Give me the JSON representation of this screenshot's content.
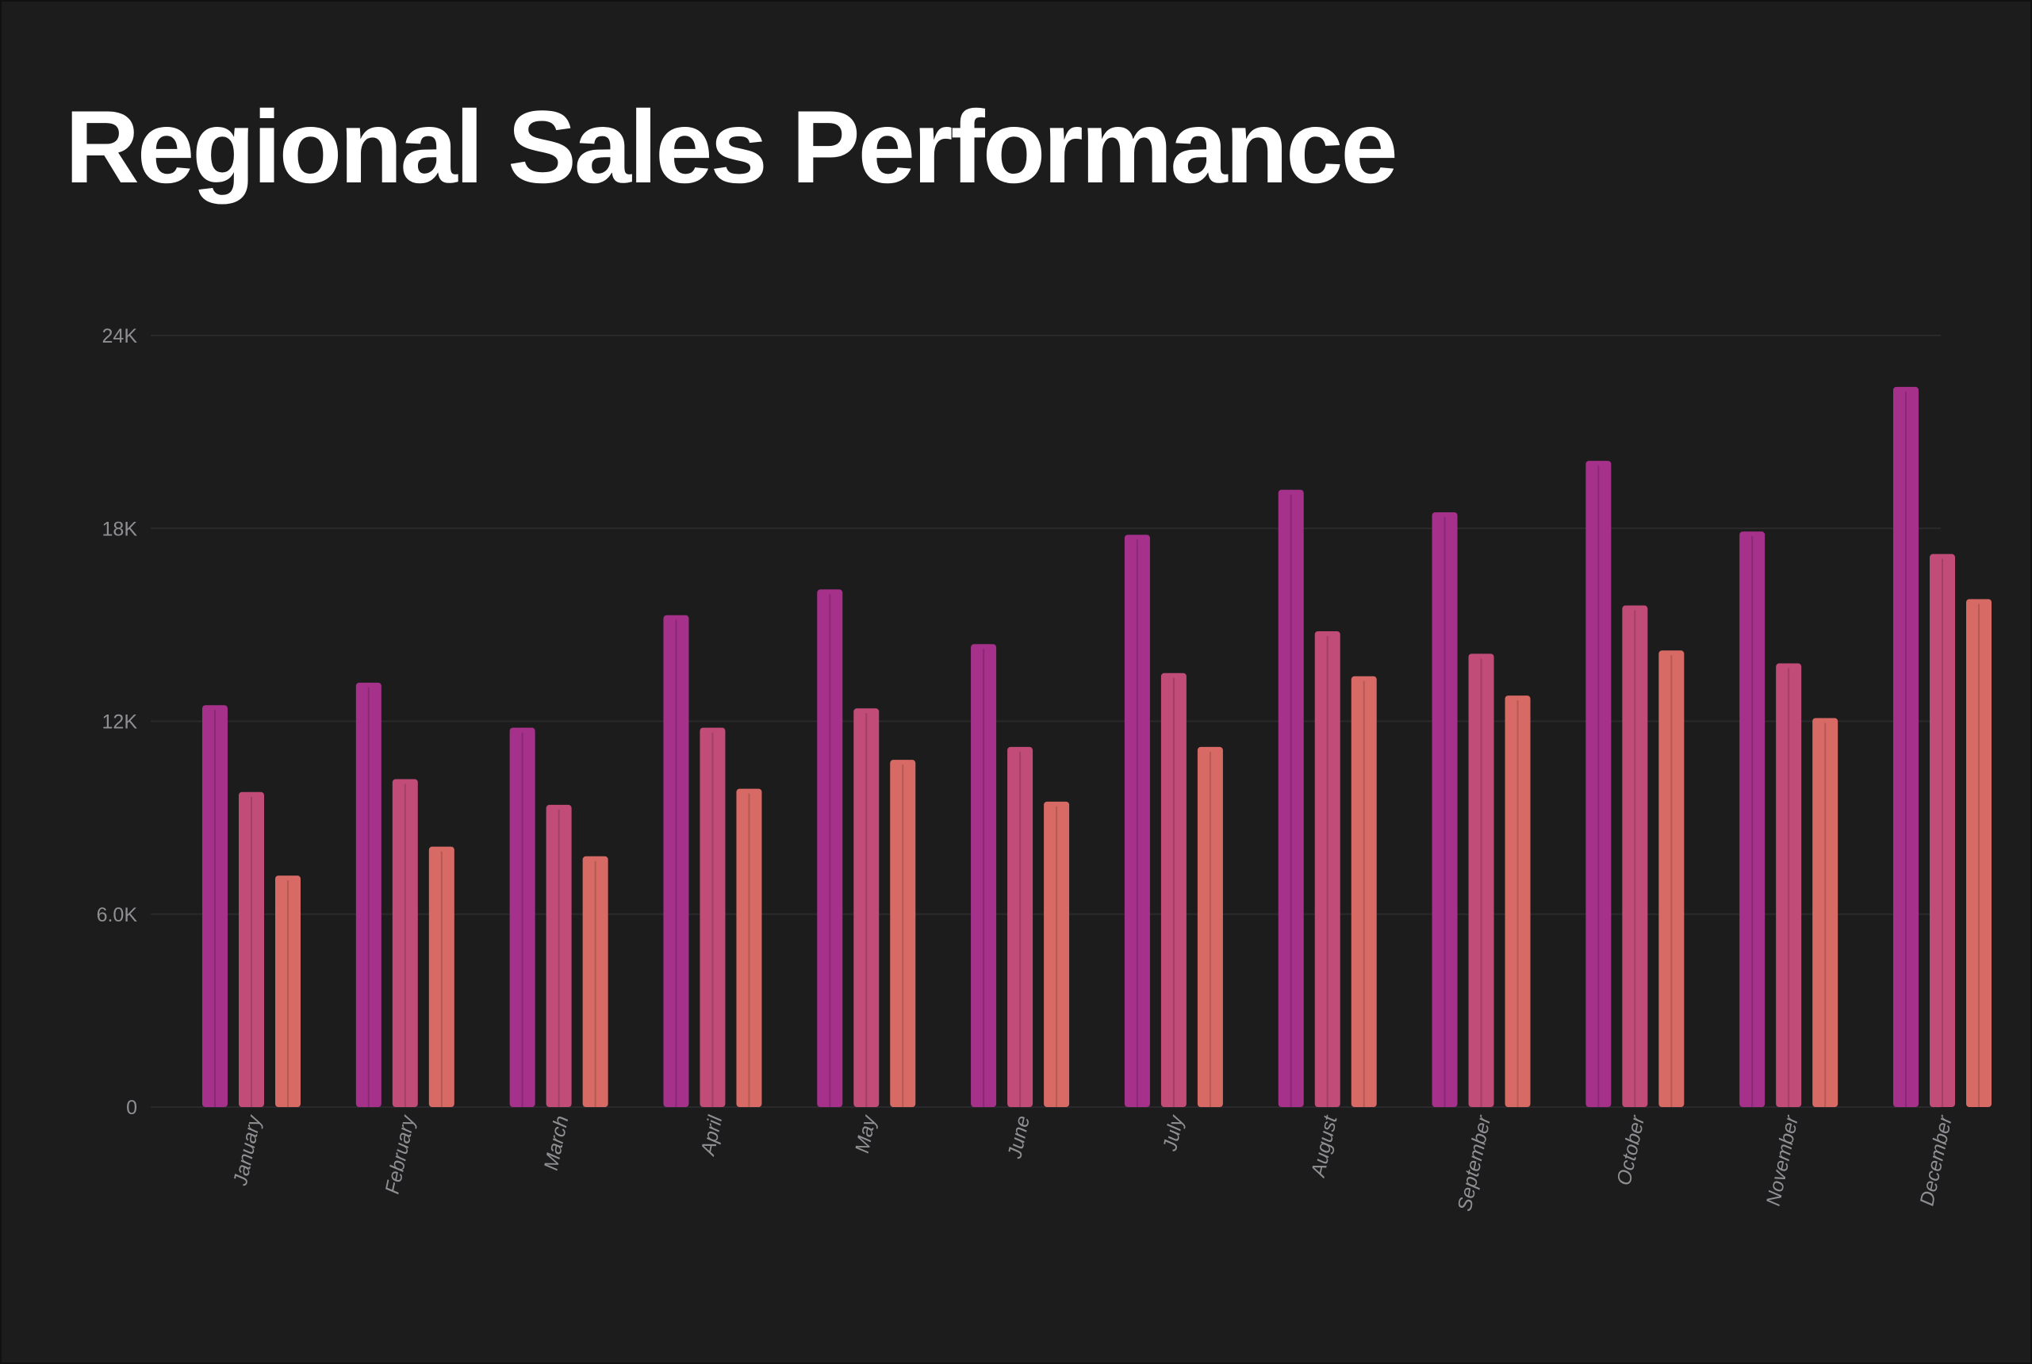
{
  "chart_data": {
    "type": "bar",
    "title": "Regional Sales Performance",
    "xlabel": "",
    "ylabel": "",
    "ylim": [
      0,
      24000
    ],
    "yticks": [
      0,
      6000,
      12000,
      18000,
      24000
    ],
    "ytick_labels": [
      "0",
      "6.0K",
      "12K",
      "18K",
      "24K"
    ],
    "grid": true,
    "legend": "none",
    "categories": [
      "January",
      "February",
      "March",
      "April",
      "May",
      "June",
      "July",
      "August",
      "September",
      "October",
      "November",
      "December"
    ],
    "series": [
      {
        "color": "#a5318a",
        "values": [
          12500,
          13200,
          11800,
          15300,
          16100,
          14400,
          17800,
          19200,
          18500,
          20100,
          17900,
          22400
        ]
      },
      {
        "color": "#c14c78",
        "values": [
          9800,
          10200,
          9400,
          11800,
          12400,
          11200,
          13500,
          14800,
          14100,
          15600,
          13800,
          17200
        ]
      },
      {
        "color": "#d86a66",
        "values": [
          7200,
          8100,
          7800,
          9900,
          10800,
          9500,
          11200,
          13400,
          12800,
          14200,
          12100,
          15800
        ]
      }
    ]
  }
}
